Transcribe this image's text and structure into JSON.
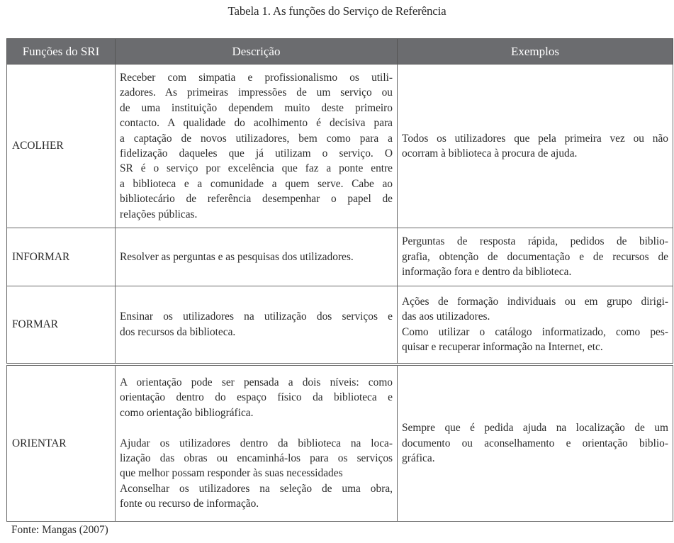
{
  "caption": "Tabela 1. As funções do Serviço de Referência",
  "table": {
    "headers": [
      "Funções do SRI",
      "Descrição",
      "Exemplos"
    ],
    "rows": [
      {
        "function": "ACOLHER",
        "description": [
          [
            "Receber com simpatia e profissionalismo os utili-",
            "zadores. As primeiras impressões de um serviço ou",
            "de uma instituição dependem muito deste primeiro",
            "contacto. A qualidade do acolhimento é decisiva para",
            "a captação de novos utilizadores, bem como para a",
            "fidelização daqueles que já utilizam o serviço. O",
            "SR é o serviço por excelência que faz a ponte entre",
            "a biblioteca e a comunidade a quem serve. Cabe ao",
            "bibliotecário de referência desempenhar o papel de",
            "relações públicas."
          ]
        ],
        "examples": [
          [
            "Todos os utilizadores que pela primeira vez ou não",
            "ocorram à biblioteca à procura de ajuda."
          ]
        ]
      },
      {
        "function": "INFORMAR",
        "description": [
          [
            "Resolver as perguntas e as pesquisas dos utilizadores."
          ]
        ],
        "examples": [
          [
            "Perguntas de resposta rápida, pedidos de biblio-",
            "grafia, obtenção de documentação e de recursos de",
            "informação fora e dentro da biblioteca."
          ]
        ]
      },
      {
        "function": "FORMAR",
        "description": [
          [
            "Ensinar os utilizadores na utilização dos serviços e",
            "dos recursos da biblioteca."
          ]
        ],
        "examples": [
          [
            "Ações de formação individuais ou em grupo dirigi-",
            "das aos utilizadores."
          ],
          [
            "Como utilizar o catálogo informatizado, como pes-",
            "quisar e recuperar informação na Internet, etc."
          ]
        ]
      },
      {
        "function": "ORIENTAR",
        "description": [
          [
            "A orientação pode ser pensada a dois níveis: como",
            "orientação dentro do espaço físico da biblioteca e",
            "como orientação bibliográfica."
          ],
          [],
          [
            "Ajudar os utilizadores dentro da biblioteca na loca-",
            "lização das obras ou encaminhá-los para os serviços",
            "que melhor possam responder às suas necessidades"
          ],
          [
            "Aconselhar os utilizadores na seleção de uma obra,",
            "fonte ou recurso de informação."
          ]
        ],
        "examples": [
          [
            "Sempre que é pedida ajuda na localização de um",
            "documento ou aconselhamento e orientação biblio-",
            "gráfica."
          ]
        ]
      }
    ]
  },
  "source": "Fonte: Mangas (2007)"
}
